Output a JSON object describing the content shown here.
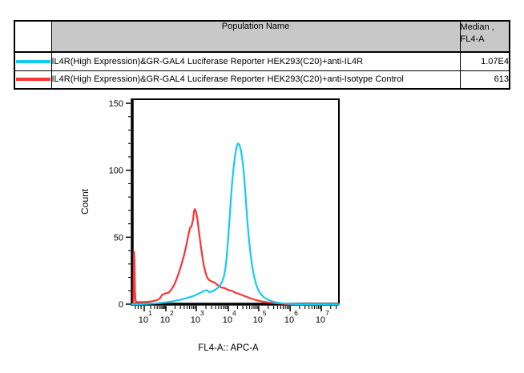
{
  "table": {
    "headers": {
      "population": "Population Name",
      "median_line1": "Median ,",
      "median_line2": "FL4-A"
    },
    "rows": [
      {
        "color": "#16c9f1",
        "name": "IL4R(High Expression)&GR-GAL4 Luciferase Reporter HEK293(C20)+anti-IL4R",
        "median": "1.07E4"
      },
      {
        "color": "#fa3534",
        "name": "IL4R(High Expression)&GR-GAL4 Luciferase Reporter HEK293(C20)+anti-Isotype Control",
        "median": "613"
      }
    ]
  },
  "chart_data": {
    "type": "line",
    "subtype": "flow-cytometry-histogram-overlay",
    "title": "",
    "xlabel": "FL4-A:: APC-A",
    "ylabel": "Count",
    "x_axis": {
      "scale": "log",
      "decades": [
        {
          "base": "10",
          "exp": "1",
          "frac": 0.058
        },
        {
          "base": "10",
          "exp": "2",
          "frac": 0.163
        },
        {
          "base": "10",
          "exp": "3",
          "frac": 0.31
        },
        {
          "base": "10",
          "exp": "4",
          "frac": 0.465
        },
        {
          "base": "10",
          "exp": "5",
          "frac": 0.612
        },
        {
          "base": "10",
          "exp": "6",
          "frac": 0.764
        },
        {
          "base": "10",
          "exp": "7",
          "frac": 0.915
        }
      ],
      "pre_minor_fracs": [
        0.015,
        0.029,
        0.043
      ]
    },
    "y_axis": {
      "ticks": [
        0,
        50,
        100,
        150
      ],
      "minor_step": 10,
      "max": 153,
      "label": "Count"
    },
    "series": [
      {
        "key": "isotype-control",
        "name": "IL4R(High Expression)&GR-GAL4 Luciferase Reporter HEK293(C20)+anti-Isotype Control",
        "color": "#fa3534",
        "median_fl4a": "613",
        "points": [
          [
            0.0,
            0
          ],
          [
            0.006,
            0
          ],
          [
            0.007,
            18
          ],
          [
            0.009,
            39
          ],
          [
            0.011,
            32
          ],
          [
            0.013,
            10
          ],
          [
            0.016,
            3
          ],
          [
            0.02,
            1.5
          ],
          [
            0.05,
            1.5
          ],
          [
            0.09,
            2
          ],
          [
            0.12,
            3
          ],
          [
            0.135,
            4.5
          ],
          [
            0.145,
            7
          ],
          [
            0.16,
            8
          ],
          [
            0.175,
            8.5
          ],
          [
            0.19,
            11
          ],
          [
            0.205,
            15
          ],
          [
            0.22,
            21
          ],
          [
            0.235,
            28
          ],
          [
            0.25,
            36
          ],
          [
            0.262,
            44
          ],
          [
            0.272,
            52
          ],
          [
            0.28,
            57
          ],
          [
            0.287,
            58
          ],
          [
            0.294,
            63
          ],
          [
            0.299,
            69
          ],
          [
            0.303,
            71
          ],
          [
            0.309,
            69
          ],
          [
            0.315,
            64
          ],
          [
            0.322,
            55
          ],
          [
            0.33,
            46
          ],
          [
            0.338,
            37
          ],
          [
            0.346,
            29
          ],
          [
            0.354,
            24
          ],
          [
            0.362,
            20
          ],
          [
            0.372,
            18
          ],
          [
            0.385,
            17
          ],
          [
            0.4,
            16
          ],
          [
            0.415,
            14
          ],
          [
            0.43,
            12.5
          ],
          [
            0.447,
            12
          ],
          [
            0.465,
            10.5
          ],
          [
            0.482,
            10
          ],
          [
            0.5,
            8.5
          ],
          [
            0.52,
            7.5
          ],
          [
            0.545,
            6
          ],
          [
            0.57,
            4.5
          ],
          [
            0.6,
            3
          ],
          [
            0.63,
            2
          ],
          [
            0.66,
            1.2
          ],
          [
            0.7,
            0.6
          ],
          [
            0.74,
            0.2
          ],
          [
            0.78,
            0
          ],
          [
            1.0,
            0
          ]
        ]
      },
      {
        "key": "anti-il4r",
        "name": "IL4R(High Expression)&GR-GAL4 Luciferase Reporter HEK293(C20)+anti-IL4R",
        "color": "#16c9f1",
        "median_fl4a": "1.07E4",
        "points": [
          [
            0.0,
            0
          ],
          [
            0.03,
            0
          ],
          [
            0.08,
            0.3
          ],
          [
            0.13,
            0.8
          ],
          [
            0.17,
            1.5
          ],
          [
            0.21,
            2.5
          ],
          [
            0.25,
            4
          ],
          [
            0.285,
            5.5
          ],
          [
            0.31,
            7
          ],
          [
            0.33,
            8.5
          ],
          [
            0.348,
            10
          ],
          [
            0.36,
            10.5
          ],
          [
            0.372,
            9
          ],
          [
            0.385,
            9.5
          ],
          [
            0.4,
            10.5
          ],
          [
            0.413,
            12
          ],
          [
            0.425,
            14
          ],
          [
            0.436,
            17
          ],
          [
            0.444,
            21
          ],
          [
            0.451,
            27
          ],
          [
            0.457,
            35
          ],
          [
            0.462,
            45
          ],
          [
            0.467,
            55
          ],
          [
            0.472,
            66
          ],
          [
            0.478,
            80
          ],
          [
            0.485,
            93
          ],
          [
            0.492,
            104
          ],
          [
            0.499,
            112
          ],
          [
            0.506,
            118
          ],
          [
            0.512,
            120
          ],
          [
            0.519,
            119
          ],
          [
            0.526,
            115
          ],
          [
            0.533,
            108
          ],
          [
            0.54,
            98
          ],
          [
            0.546,
            86
          ],
          [
            0.552,
            73
          ],
          [
            0.558,
            60
          ],
          [
            0.565,
            48
          ],
          [
            0.572,
            38
          ],
          [
            0.58,
            29
          ],
          [
            0.589,
            21
          ],
          [
            0.599,
            15
          ],
          [
            0.61,
            10.5
          ],
          [
            0.622,
            7.5
          ],
          [
            0.638,
            5
          ],
          [
            0.655,
            3.5
          ],
          [
            0.675,
            2.2
          ],
          [
            0.695,
            1.4
          ],
          [
            0.72,
            0.8
          ],
          [
            0.76,
            0.3
          ],
          [
            0.81,
            0
          ],
          [
            1.0,
            0
          ]
        ]
      }
    ]
  }
}
